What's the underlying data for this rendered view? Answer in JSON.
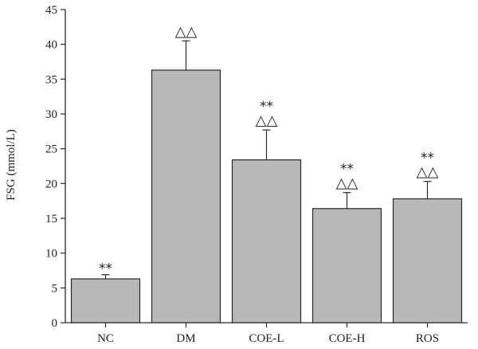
{
  "chart_data": {
    "type": "bar",
    "categories": [
      "NC",
      "DM",
      "COE-L",
      "COE-H",
      "ROS"
    ],
    "values": [
      6.3,
      36.3,
      23.4,
      16.4,
      17.8
    ],
    "errors": [
      0.6,
      4.2,
      4.3,
      2.3,
      2.5
    ],
    "annotations_stars": [
      "**",
      "",
      "**",
      "**",
      "**"
    ],
    "annotations_triangles": [
      "",
      "△△",
      "△△",
      "△△",
      "△△"
    ],
    "ylabel": "FSG (mmol/L)",
    "xlabel": "",
    "ylim": [
      0,
      45
    ],
    "yticks": [
      0,
      5,
      10,
      15,
      20,
      25,
      30,
      35,
      40,
      45
    ],
    "grid": false,
    "colors": {
      "bar_fill": "#b7b9b8",
      "bar_stroke": "#2a2a2a",
      "axis": "#2a2a2a"
    }
  }
}
